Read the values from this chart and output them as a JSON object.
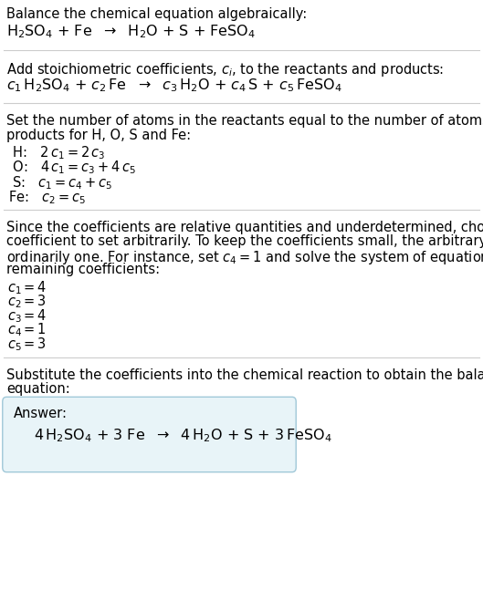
{
  "background_color": "#ffffff",
  "text_color": "#000000",
  "answer_box_color": "#e8f4f8",
  "answer_box_border": "#a0c8d8",
  "fig_width": 5.29,
  "fig_height": 6.47,
  "dpi": 100
}
